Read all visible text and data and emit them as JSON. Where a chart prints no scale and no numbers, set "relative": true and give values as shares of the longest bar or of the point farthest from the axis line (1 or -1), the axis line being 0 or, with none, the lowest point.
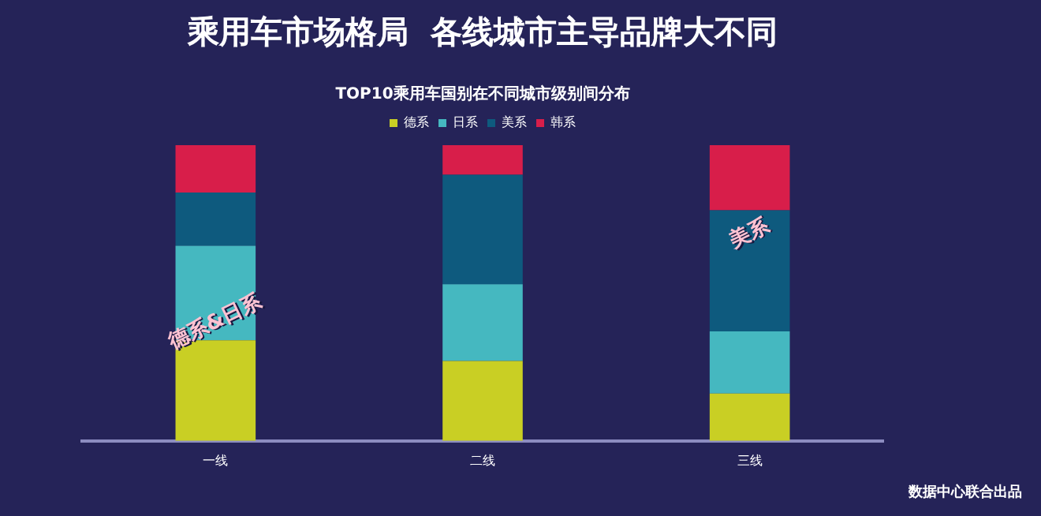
{
  "chart_data": {
    "type": "bar",
    "title": "乘用车市场格局  各线城市主导品牌大不同",
    "subtitle": "TOP10乘用车国别在不同城市级别间分布",
    "categories": [
      "一线",
      "二线",
      "三线"
    ],
    "stacked": true,
    "relative": true,
    "legend": "top",
    "grid": false,
    "series": [
      {
        "name": "德系",
        "color": "#c9cf24",
        "values": [
          0.34,
          0.27,
          0.16
        ]
      },
      {
        "name": "日系",
        "color": "#45b8c0",
        "values": [
          0.32,
          0.26,
          0.21
        ]
      },
      {
        "name": "美系",
        "color": "#0e5a7e",
        "values": [
          0.18,
          0.37,
          0.41
        ]
      },
      {
        "name": "韩系",
        "color": "#d81e4a",
        "values": [
          0.16,
          0.1,
          0.22
        ]
      }
    ],
    "annotations": [
      "德系&日系",
      "美系",
      "数据中心联合出品"
    ]
  }
}
